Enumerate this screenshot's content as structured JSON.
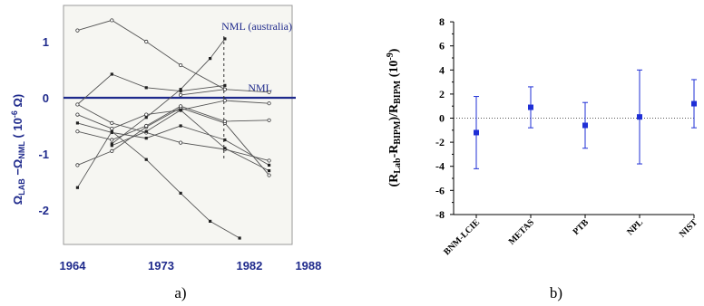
{
  "chart_data": [
    {
      "type": "line",
      "panel_label": "a)",
      "x_ticks": [
        "1964",
        "1973",
        "1982",
        "1988"
      ],
      "y_ticks": [
        "1",
        "0",
        "-1",
        "-2"
      ],
      "ylabel_main": "Ω",
      "ylabel_sub1": "LAB",
      "ylabel_mid": " −Ω",
      "ylabel_sub2": "NML",
      "ylabel_unit": "  ( 10",
      "ylabel_exp": "-6",
      "ylabel_end": " Ω)",
      "reference_label": "NML",
      "reference_value": 0,
      "annotation_label": "NML (australia)",
      "annotation_year": 1979.4,
      "xlim": [
        1964,
        1988
      ],
      "ylim": [
        -2.5,
        1.5
      ],
      "grid": false,
      "series": [
        {
          "marker": "open",
          "x": [
            1964.5,
            1968,
            1971.5,
            1975,
            1979.5
          ],
          "y": [
            1.2,
            1.38,
            1.0,
            0.58,
            0.15
          ]
        },
        {
          "marker": "filled",
          "x": [
            1964.5,
            1968,
            1971.5,
            1975,
            1979.5
          ],
          "y": [
            -0.12,
            0.42,
            0.18,
            0.12,
            0.22
          ]
        },
        {
          "marker": "filled",
          "x": [
            1968,
            1971.5,
            1975,
            1978,
            1979.5
          ],
          "y": [
            -0.82,
            -0.35,
            0.15,
            0.7,
            1.05
          ]
        },
        {
          "marker": "open",
          "x": [
            1964.5,
            1968,
            1971.5,
            1975,
            1979.5,
            1984
          ],
          "y": [
            -0.12,
            -0.45,
            -0.62,
            -0.8,
            -0.92,
            -1.12
          ]
        },
        {
          "marker": "open",
          "x": [
            1964.5,
            1968,
            1971.5,
            1975,
            1979.5,
            1984
          ],
          "y": [
            -0.3,
            -0.55,
            -0.3,
            -0.22,
            -0.05,
            -0.1
          ]
        },
        {
          "marker": "filled",
          "x": [
            1964.5,
            1968,
            1971.5,
            1975,
            1979.5,
            1984
          ],
          "y": [
            -0.45,
            -0.62,
            -0.72,
            -0.5,
            -0.75,
            -1.2
          ]
        },
        {
          "marker": "filled",
          "x": [
            1964.5,
            1968,
            1971.5,
            1975,
            1978,
            1981
          ],
          "y": [
            -1.6,
            -0.6,
            -1.1,
            -1.7,
            -2.2,
            -2.5
          ]
        },
        {
          "marker": "open",
          "x": [
            1964.5,
            1968,
            1971.5,
            1975,
            1979.5,
            1984
          ],
          "y": [
            -1.2,
            -0.95,
            -0.52,
            -0.18,
            -0.45,
            -1.38
          ]
        },
        {
          "marker": "open",
          "x": [
            1964.5,
            1968,
            1971.5,
            1975,
            1979.5,
            1984
          ],
          "y": [
            -0.6,
            -0.75,
            -0.5,
            -0.15,
            -0.42,
            -0.4
          ]
        },
        {
          "marker": "filled",
          "x": [
            1968,
            1971.5,
            1975,
            1979.5,
            1984
          ],
          "y": [
            -0.85,
            -0.6,
            -0.22,
            -0.9,
            -1.3
          ]
        },
        {
          "marker": "open",
          "x": [
            1975,
            1979.5,
            1984
          ],
          "y": [
            0.05,
            0.15,
            0.1
          ]
        }
      ]
    },
    {
      "type": "scatter",
      "panel_label": "b)",
      "categories": [
        "BNM-LCIE",
        "METAS",
        "PTB",
        "NPL",
        "NIST"
      ],
      "values": [
        -1.2,
        0.9,
        -0.6,
        0.1,
        1.2
      ],
      "err_low": [
        -4.2,
        -0.8,
        -2.5,
        -3.8,
        -0.8
      ],
      "err_high": [
        1.8,
        2.6,
        1.3,
        4.0,
        3.2
      ],
      "ylim": [
        -8,
        8
      ],
      "y_ticks": [
        8,
        6,
        4,
        2,
        0,
        -2,
        -4,
        -6,
        -8
      ],
      "ylabel_a": "(R",
      "ylabel_sub1": "Lab",
      "ylabel_b": "-R",
      "ylabel_sub2": "BIPM",
      "ylabel_c": ")/R",
      "ylabel_sub3": "BIPM",
      "ylabel_d": " (10",
      "ylabel_exp": "-9",
      "ylabel_e": ")",
      "zero_line": true,
      "marker_color": "#1f2fd6",
      "grid": false
    }
  ]
}
